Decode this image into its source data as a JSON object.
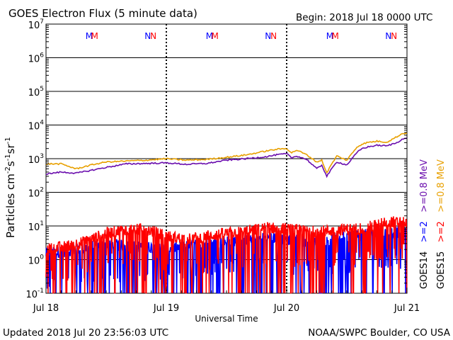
{
  "chart_data": {
    "type": "line",
    "title": "GOES Electron Flux (5 minute data)",
    "begin_label": "Begin: 2018 Jul 18 0000 UTC",
    "xlabel": "Universal Time",
    "ylabel": "Particles cm-2s-1sr-1",
    "y_scale": "log",
    "ylim": [
      0.1,
      10000000
    ],
    "y_tick_values": [
      0.1,
      1,
      10,
      100,
      1000,
      10000,
      100000,
      1000000,
      10000000
    ],
    "y_tick_labels": [
      {
        "base": "10",
        "exp": "-1"
      },
      {
        "base": "10",
        "exp": "0"
      },
      {
        "base": "10",
        "exp": "1"
      },
      {
        "base": "10",
        "exp": "2"
      },
      {
        "base": "10",
        "exp": "3"
      },
      {
        "base": "10",
        "exp": "4"
      },
      {
        "base": "10",
        "exp": "5"
      },
      {
        "base": "10",
        "exp": "6"
      },
      {
        "base": "10",
        "exp": "7"
      }
    ],
    "xlim": [
      0,
      72
    ],
    "x_unit": "hours since 2018 Jul 18 0000 UTC",
    "x_ticks": [
      {
        "value": 0,
        "label": "Jul 18"
      },
      {
        "value": 24,
        "label": "Jul 19"
      },
      {
        "value": 48,
        "label": "Jul 20"
      },
      {
        "value": 72,
        "label": "Jul 21"
      }
    ],
    "threshold_line": 1000,
    "grid": true,
    "legend_placement": "right-vertical",
    "legend_groups": [
      {
        "prefix": "GOES14",
        "entries": [
          {
            "label": ">=2",
            "color": "#0000ff"
          },
          {
            "label": ">=0.8 MeV",
            "color": "#6a0dad"
          }
        ]
      },
      {
        "prefix": "GOES15",
        "entries": [
          {
            "label": ">=2",
            "color": "#ff0000"
          },
          {
            "label": ">=0.8 MeV",
            "color": "#e8a000"
          }
        ]
      }
    ],
    "top_markers": [
      {
        "x": 8.6,
        "label": "M",
        "color": "#0000ff"
      },
      {
        "x": 9.7,
        "label": "M",
        "color": "#ff0000"
      },
      {
        "x": 20.3,
        "label": "N",
        "color": "#0000ff"
      },
      {
        "x": 21.4,
        "label": "N",
        "color": "#ff0000"
      },
      {
        "x": 32.6,
        "label": "M",
        "color": "#0000ff"
      },
      {
        "x": 33.7,
        "label": "M",
        "color": "#ff0000"
      },
      {
        "x": 44.3,
        "label": "N",
        "color": "#0000ff"
      },
      {
        "x": 45.4,
        "label": "N",
        "color": "#ff0000"
      },
      {
        "x": 56.6,
        "label": "M",
        "color": "#0000ff"
      },
      {
        "x": 57.7,
        "label": "M",
        "color": "#ff0000"
      },
      {
        "x": 68.3,
        "label": "N",
        "color": "#0000ff"
      },
      {
        "x": 69.4,
        "label": "N",
        "color": "#ff0000"
      }
    ],
    "series": [
      {
        "name": "GOES14 >=0.8 MeV",
        "color": "#6a0dad",
        "style": "smooth",
        "x": [
          0,
          3,
          6,
          9,
          12,
          16,
          20,
          24,
          28,
          32,
          36,
          40,
          44,
          46,
          48,
          49,
          50,
          52,
          54,
          55,
          56,
          57,
          58,
          60,
          62,
          63,
          64,
          66,
          68,
          70,
          71,
          72
        ],
        "y": [
          350,
          400,
          370,
          450,
          550,
          700,
          720,
          750,
          680,
          720,
          900,
          1000,
          1150,
          1300,
          1400,
          1050,
          1200,
          950,
          500,
          650,
          300,
          500,
          800,
          650,
          1500,
          2000,
          2200,
          2500,
          2400,
          3000,
          3800,
          4000
        ]
      },
      {
        "name": "GOES15 >=0.8 MeV",
        "color": "#e8a000",
        "style": "smooth",
        "x": [
          0,
          3,
          6,
          9,
          12,
          16,
          20,
          24,
          28,
          32,
          36,
          40,
          44,
          46,
          48,
          49,
          50,
          52,
          54,
          55,
          56,
          57,
          58,
          60,
          62,
          63,
          64,
          66,
          68,
          70,
          71,
          72
        ],
        "y": [
          700,
          700,
          500,
          650,
          800,
          850,
          900,
          1000,
          900,
          950,
          1100,
          1300,
          1700,
          1900,
          2000,
          1500,
          1800,
          1300,
          800,
          900,
          380,
          700,
          1200,
          900,
          2200,
          2700,
          3000,
          3300,
          3100,
          4500,
          5500,
          5800
        ]
      },
      {
        "name": "GOES14 >=2",
        "color": "#0000ff",
        "style": "noisy",
        "x": [
          0,
          4,
          8,
          12,
          16,
          20,
          24,
          28,
          32,
          36,
          40,
          44,
          48,
          52,
          56,
          60,
          64,
          68,
          72
        ],
        "y": [
          1.5,
          1.8,
          2.2,
          3,
          2.5,
          2.4,
          2,
          2.5,
          3,
          3.5,
          4,
          4.5,
          4,
          3.5,
          3.5,
          5,
          5.5,
          6,
          7
        ]
      },
      {
        "name": "GOES15 >=2",
        "color": "#ff0000",
        "style": "noisy",
        "x": [
          0,
          4,
          8,
          12,
          16,
          20,
          24,
          28,
          32,
          36,
          40,
          44,
          48,
          52,
          56,
          60,
          64,
          68,
          72
        ],
        "y": [
          2,
          2.5,
          3.5,
          6,
          8,
          8,
          5,
          4,
          5,
          6,
          7,
          9,
          8,
          7,
          7,
          8,
          9,
          14,
          12
        ]
      }
    ]
  },
  "footer": {
    "updated": "Updated 2018 Jul 20 23:56:03 UTC",
    "credit": "NOAA/SWPC Boulder, CO USA"
  }
}
